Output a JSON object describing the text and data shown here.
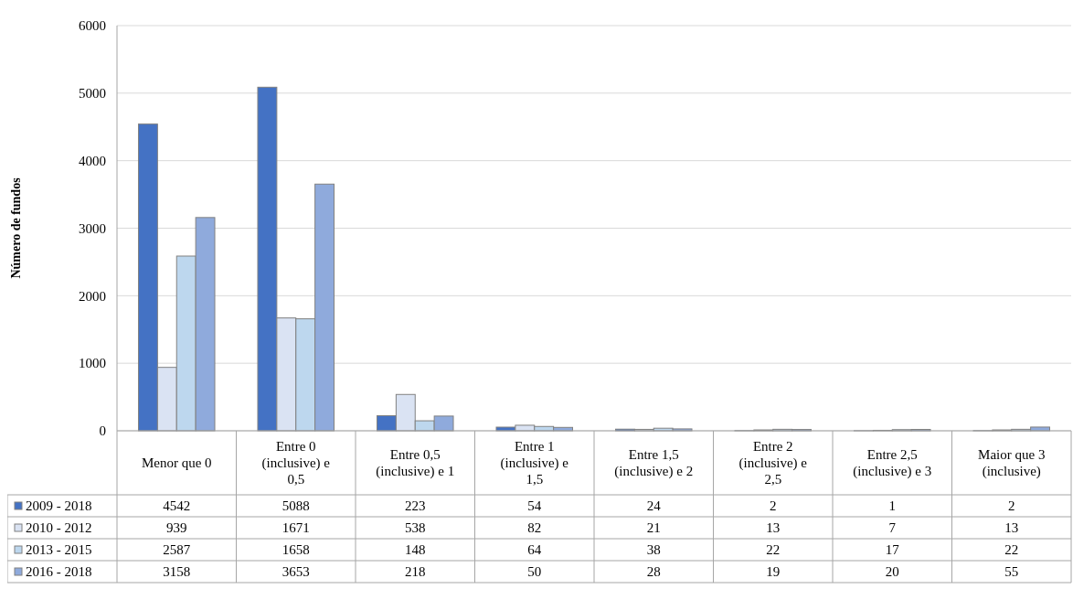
{
  "chart_data": {
    "type": "bar",
    "ylabel": "Número de fundos",
    "categories": [
      "Menor que 0",
      "Entre 0 (inclusive) e 0,5",
      "Entre 0,5 (inclusive) e 1",
      "Entre 1 (inclusive) e 1,5",
      "Entre 1,5 (inclusive) e 2",
      "Entre 2 (inclusive) e 2,5",
      "Entre 2,5 (inclusive) e 3",
      "Maior que 3 (inclusive)"
    ],
    "series": [
      {
        "name": "2009 - 2018",
        "color": "#4472c4",
        "values": [
          4542,
          5088,
          223,
          54,
          24,
          2,
          1,
          2
        ]
      },
      {
        "name": "2010 - 2012",
        "color": "#dae3f3",
        "values": [
          939,
          1671,
          538,
          82,
          21,
          13,
          7,
          13
        ]
      },
      {
        "name": "2013 - 2015",
        "color": "#bdd7ee",
        "values": [
          2587,
          1658,
          148,
          64,
          38,
          22,
          17,
          22
        ]
      },
      {
        "name": "2016 - 2018",
        "color": "#8faadc",
        "values": [
          3158,
          3653,
          218,
          50,
          28,
          19,
          20,
          55
        ]
      }
    ],
    "ylim": [
      0,
      6000
    ],
    "yticks": [
      0,
      1000,
      2000,
      3000,
      4000,
      5000,
      6000
    ],
    "grid": "y",
    "legend": "bottom",
    "data_labels": true
  }
}
